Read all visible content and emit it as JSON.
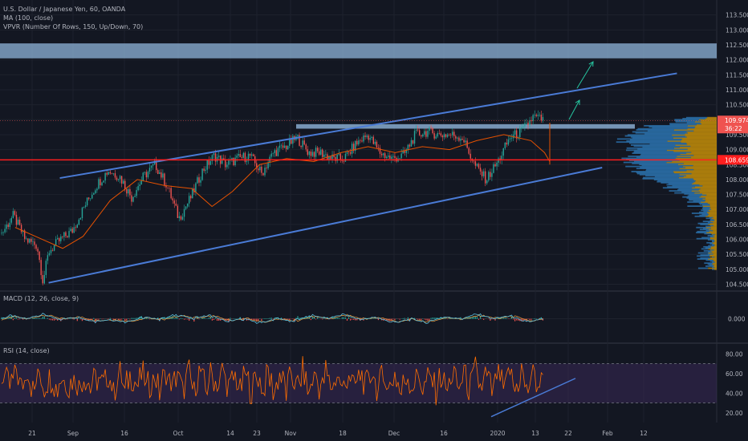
{
  "legend": {
    "main": "U.S. Dollar / Japanese Yen, 60, OANDA",
    "ma": "MA (100, close)",
    "vpvr": "VPVR (Number Of Rows, 150, Up/Down, 70)",
    "macd": "MACD (12, 26, close, 9)",
    "rsi": "RSI (14, close)"
  },
  "colors": {
    "background": "#131722",
    "grid": "#1e222d",
    "up": "#26a69a",
    "down": "#ef5350",
    "ma": "#e65100",
    "trendline": "#4a7bd6",
    "zone": "#8fb4d9",
    "support": "#ff1e1e",
    "vpvr_up": "#2a6fa8",
    "vpvr_down": "#b8860b",
    "rsi_line": "#ff6d00",
    "rsi_band": "#3c2a5a",
    "macd_line": "#5bc0de",
    "signal_line": "#f0a040",
    "arrow": "#26c6a0"
  },
  "chart_data": [
    {
      "type": "line",
      "name_pane": "price",
      "symbol": "USDJPY",
      "ylim": [
        104.3,
        114.0
      ],
      "yticks": [
        104.5,
        105.0,
        105.5,
        106.0,
        106.5,
        107.0,
        107.5,
        108.0,
        108.5,
        109.0,
        109.5,
        110.0,
        110.5,
        111.0,
        111.5,
        112.0,
        112.5,
        113.0,
        113.5
      ],
      "ytick_labels": [
        "104.500",
        "105.000",
        "105.500",
        "106.000",
        "106.500",
        "107.000",
        "107.500",
        "108.000",
        "108.500",
        "109.000",
        "109.500",
        "110.000",
        "110.500",
        "111.000",
        "111.500",
        "112.000",
        "112.500",
        "113.000",
        "113.500"
      ],
      "xticks": [
        "21",
        "Sep",
        "16",
        "Oct",
        "14",
        "23",
        "Nov",
        "18",
        "Dec",
        "16",
        "2020",
        "13",
        "22",
        "Feb",
        "12"
      ],
      "price_path": [
        [
          0.0,
          106.2
        ],
        [
          0.02,
          106.8
        ],
        [
          0.04,
          106.0
        ],
        [
          0.06,
          105.8
        ],
        [
          0.07,
          104.6
        ],
        [
          0.08,
          105.6
        ],
        [
          0.1,
          106.0
        ],
        [
          0.12,
          106.3
        ],
        [
          0.14,
          107.1
        ],
        [
          0.16,
          107.8
        ],
        [
          0.18,
          108.3
        ],
        [
          0.2,
          108.1
        ],
        [
          0.22,
          107.4
        ],
        [
          0.24,
          108.1
        ],
        [
          0.26,
          108.5
        ],
        [
          0.28,
          107.8
        ],
        [
          0.3,
          106.7
        ],
        [
          0.32,
          107.4
        ],
        [
          0.34,
          108.3
        ],
        [
          0.36,
          108.8
        ],
        [
          0.38,
          108.5
        ],
        [
          0.4,
          108.7
        ],
        [
          0.42,
          108.8
        ],
        [
          0.44,
          108.2
        ],
        [
          0.46,
          108.9
        ],
        [
          0.48,
          109.1
        ],
        [
          0.5,
          109.4
        ],
        [
          0.52,
          108.9
        ],
        [
          0.54,
          108.9
        ],
        [
          0.56,
          108.7
        ],
        [
          0.58,
          108.7
        ],
        [
          0.6,
          109.2
        ],
        [
          0.62,
          109.5
        ],
        [
          0.64,
          108.9
        ],
        [
          0.66,
          108.7
        ],
        [
          0.68,
          108.8
        ],
        [
          0.7,
          109.5
        ],
        [
          0.72,
          109.6
        ],
        [
          0.74,
          109.5
        ],
        [
          0.76,
          109.5
        ],
        [
          0.78,
          109.4
        ],
        [
          0.8,
          108.5
        ],
        [
          0.82,
          108.0
        ],
        [
          0.84,
          108.6
        ],
        [
          0.86,
          109.4
        ],
        [
          0.88,
          109.6
        ],
        [
          0.9,
          110.1
        ],
        [
          0.92,
          109.97
        ]
      ],
      "ma_path": [
        [
          0.02,
          106.4
        ],
        [
          0.06,
          106.0
        ],
        [
          0.09,
          105.7
        ],
        [
          0.12,
          106.1
        ],
        [
          0.16,
          107.3
        ],
        [
          0.2,
          108.0
        ],
        [
          0.24,
          107.8
        ],
        [
          0.28,
          107.7
        ],
        [
          0.31,
          107.1
        ],
        [
          0.34,
          107.6
        ],
        [
          0.38,
          108.5
        ],
        [
          0.42,
          108.7
        ],
        [
          0.46,
          108.6
        ],
        [
          0.5,
          108.9
        ],
        [
          0.54,
          109.1
        ],
        [
          0.58,
          108.9
        ],
        [
          0.62,
          109.1
        ],
        [
          0.66,
          109.0
        ],
        [
          0.7,
          109.3
        ],
        [
          0.74,
          109.5
        ],
        [
          0.78,
          109.3
        ],
        [
          0.8,
          108.9
        ],
        [
          0.82,
          108.6
        ],
        [
          0.84,
          108.5
        ],
        [
          0.86,
          109.0
        ],
        [
          0.88,
          109.6
        ],
        [
          0.92,
          109.9
        ]
      ],
      "last_price": 109.974,
      "last_price_label": "109.974",
      "countdown_label": "36:22",
      "support_level": 108.659,
      "support_label": "108.659",
      "resistance_zone": [
        112.05,
        112.55
      ],
      "breakout_zone": [
        109.7,
        109.85
      ],
      "upper_trendline": [
        [
          108.05,
          0.08
        ],
        [
          111.55,
          0.905
        ]
      ],
      "lower_trendline": [
        [
          104.55,
          0.065
        ],
        [
          108.4,
          0.805
        ]
      ]
    },
    {
      "type": "line",
      "name_pane": "macd",
      "ytick_labels": [
        "0.000"
      ]
    },
    {
      "type": "line",
      "name_pane": "rsi",
      "ylim": [
        10,
        90
      ],
      "yticks": [
        20,
        40,
        60,
        80
      ],
      "ytick_labels": [
        "20.00",
        "40.00",
        "60.00",
        "80.00"
      ],
      "band": [
        30,
        70
      ]
    }
  ]
}
